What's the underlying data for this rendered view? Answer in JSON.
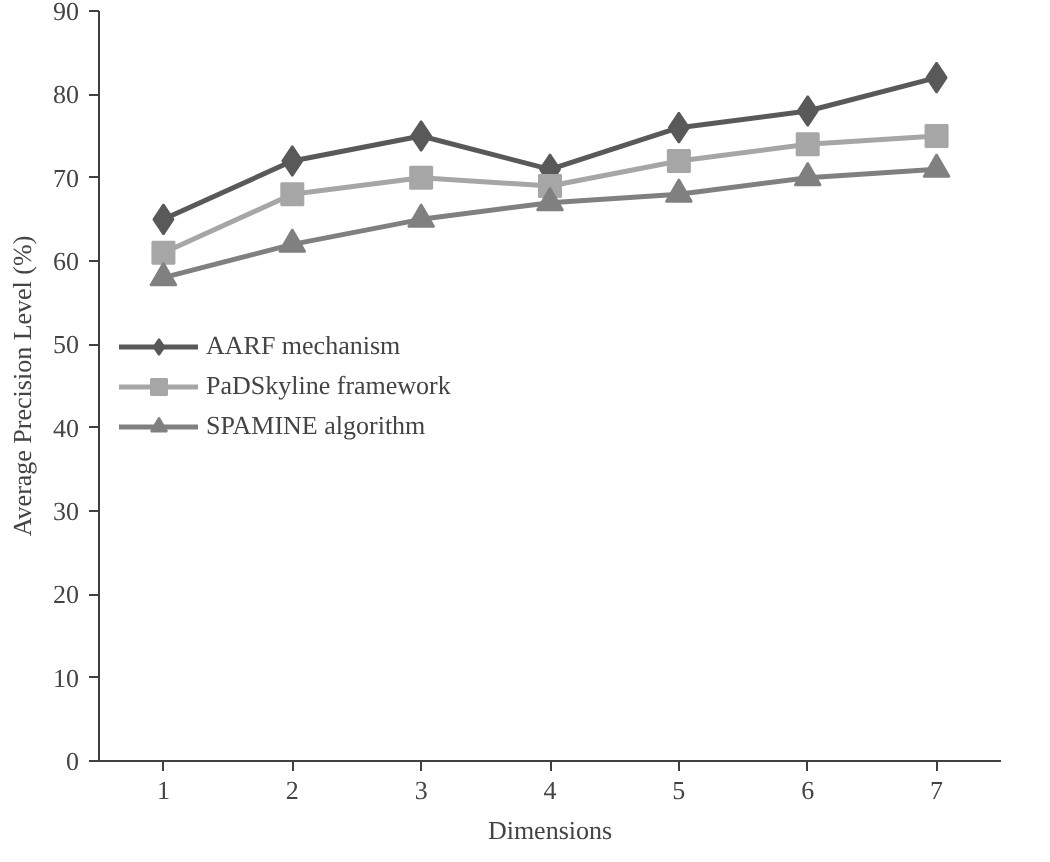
{
  "chart_data": {
    "type": "line",
    "xlabel": "Dimensions",
    "ylabel": "Average Precision Level (%)",
    "categories": [
      "1",
      "2",
      "3",
      "4",
      "5",
      "6",
      "7"
    ],
    "series": [
      {
        "name": "AARF mechanism",
        "color": "#595959",
        "marker": "diamond",
        "values": [
          65,
          72,
          75,
          71,
          76,
          78,
          82
        ]
      },
      {
        "name": "PaDSkyline framework",
        "color": "#a6a6a6",
        "marker": "square",
        "values": [
          61,
          68,
          70,
          69,
          72,
          74,
          75
        ]
      },
      {
        "name": "SPAMINE algorithm",
        "color": "#808080",
        "marker": "triangle",
        "values": [
          58,
          62,
          65,
          67,
          68,
          70,
          71
        ]
      }
    ],
    "ylim": [
      0,
      90
    ],
    "yticks": [
      0,
      10,
      20,
      30,
      40,
      50,
      60,
      70,
      80,
      90
    ],
    "grid": false,
    "legend": "left",
    "line_style": "solid"
  }
}
